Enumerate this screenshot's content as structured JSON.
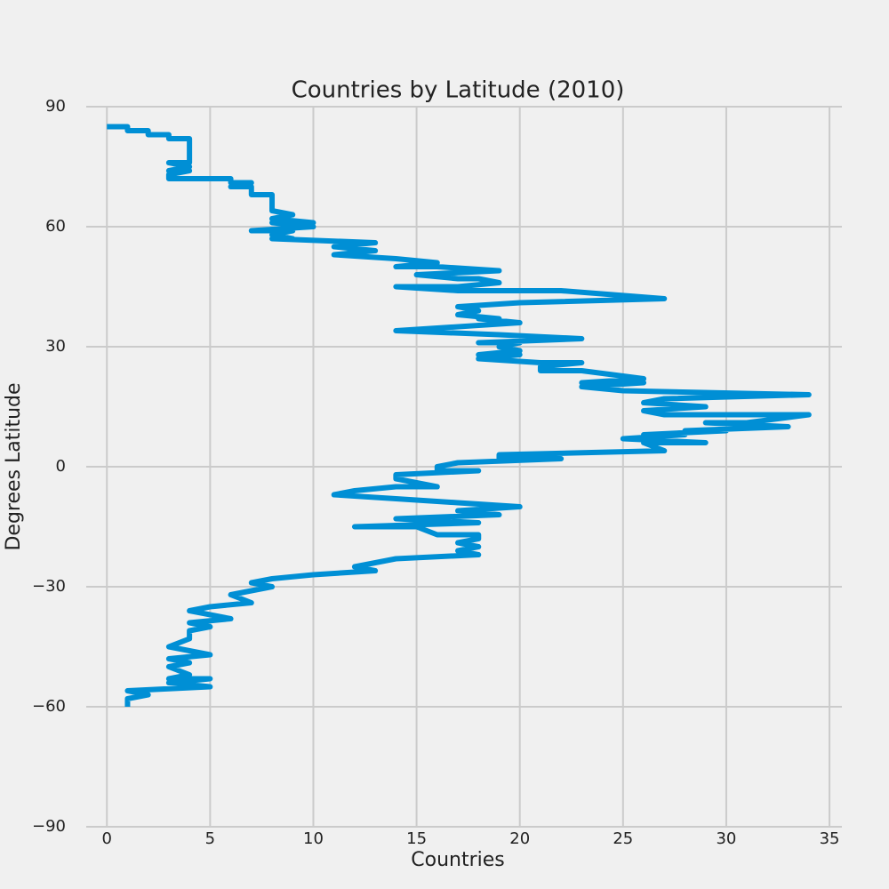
{
  "chart_data": {
    "type": "line",
    "title": "Countries by Latitude (2010)",
    "x_label": "Countries",
    "y_label": "Degrees Latitude",
    "x": [
      0,
      1,
      1,
      2,
      2,
      3,
      3,
      4,
      4,
      3,
      4,
      3,
      4,
      3,
      3,
      6,
      6,
      7,
      6,
      7,
      7,
      8,
      8,
      9,
      8,
      10,
      8,
      10,
      7,
      9,
      8,
      9,
      8,
      13,
      11,
      13,
      11,
      14,
      16,
      14,
      16,
      19,
      15,
      17,
      18,
      19,
      17,
      14,
      17,
      22,
      27,
      20,
      17,
      18,
      17,
      19,
      18,
      20,
      14,
      19,
      23,
      18,
      20,
      19,
      20,
      18,
      20,
      18,
      21,
      23,
      21,
      21,
      23,
      26,
      23,
      26,
      23,
      25,
      34,
      27,
      26,
      29,
      26,
      27,
      34,
      31,
      29,
      33,
      28,
      30,
      26,
      28,
      25,
      29,
      26,
      27,
      19,
      19,
      22,
      17,
      16,
      16,
      18,
      14,
      14,
      16,
      14,
      12,
      11,
      14,
      17,
      20,
      17,
      19,
      14,
      18,
      12,
      15,
      16,
      18,
      18,
      17,
      18,
      17,
      18,
      14,
      13,
      12,
      13,
      10,
      8,
      7,
      8,
      7,
      6,
      7,
      5,
      4,
      6,
      4,
      5,
      4,
      4,
      3,
      4,
      5,
      3,
      4,
      3,
      4,
      3,
      5,
      3,
      5,
      1,
      2,
      1,
      1
    ],
    "series": [
      {
        "name": "Degrees Latitude",
        "color": "#008fd5",
        "values": [
          85,
          85,
          84,
          84,
          83,
          83,
          82,
          82,
          76,
          76,
          75,
          74,
          74,
          73,
          72,
          72,
          71,
          71,
          70,
          70,
          68,
          68,
          64,
          63,
          62,
          61,
          61,
          60,
          59,
          59,
          58,
          57,
          57,
          56,
          55,
          54,
          53,
          52,
          51,
          50,
          50,
          49,
          48,
          47,
          47,
          46,
          45,
          45,
          44,
          44,
          42,
          41,
          40,
          39,
          38,
          37,
          37,
          36,
          34,
          33,
          32,
          31,
          31,
          30,
          29,
          28,
          28,
          27,
          26,
          26,
          25,
          24,
          24,
          22,
          21,
          21,
          20,
          19,
          18,
          17,
          16,
          15,
          14,
          13,
          13,
          11,
          11,
          10,
          9,
          9,
          8,
          8,
          7,
          6,
          6,
          4,
          3,
          2,
          2,
          1,
          0,
          -1,
          -1,
          -2,
          -3,
          -5,
          -5,
          -6,
          -7,
          -8,
          -9,
          -10,
          -11,
          -12,
          -13,
          -14,
          -15,
          -15,
          -17,
          -17,
          -18,
          -19,
          -20,
          -21,
          -22,
          -23,
          -24,
          -25,
          -26,
          -27,
          -28,
          -29,
          -30,
          -31,
          -32,
          -34,
          -35,
          -36,
          -38,
          -39,
          -40,
          -41,
          -43,
          -45,
          -46,
          -47,
          -48,
          -49,
          -50,
          -52,
          -53,
          -53,
          -54,
          -55,
          -56,
          -57,
          -58,
          -60
        ]
      }
    ],
    "xlim": [
      -1,
      35.6
    ],
    "ylim": [
      -90,
      90
    ],
    "xticks": [
      0,
      5,
      10,
      15,
      20,
      25,
      30,
      35
    ],
    "yticks": [
      {
        "value": -90,
        "label": "−90"
      },
      {
        "value": -60,
        "label": "−60"
      },
      {
        "value": -30,
        "label": "−30"
      },
      0,
      30,
      60,
      90
    ],
    "grid": true
  }
}
